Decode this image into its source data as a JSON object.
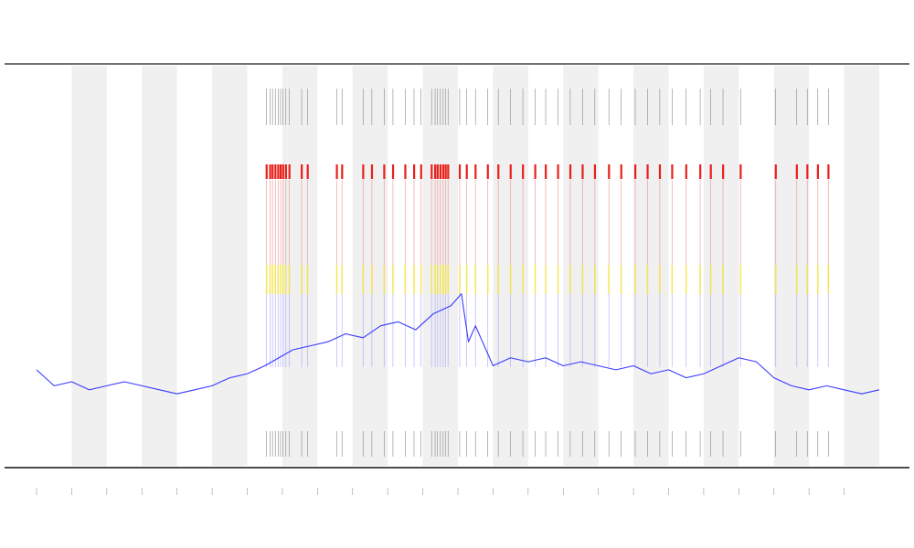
{
  "chart_data": {
    "type": "line",
    "title": "",
    "xlabel": "",
    "ylabel": "",
    "legend": "",
    "grid": false,
    "x_range": [
      0,
      24
    ],
    "y_range": [
      0,
      1
    ],
    "shaded_bands": [
      [
        1,
        2
      ],
      [
        3,
        4
      ],
      [
        5,
        6
      ],
      [
        7,
        8
      ],
      [
        9,
        10
      ],
      [
        11,
        12
      ],
      [
        13,
        14
      ],
      [
        15,
        16
      ],
      [
        17,
        18
      ],
      [
        19,
        20
      ],
      [
        21,
        22
      ],
      [
        23,
        24
      ]
    ],
    "series": [
      {
        "color": "#3a3aff",
        "x": [
          0,
          0.5,
          1,
          1.5,
          2,
          2.5,
          3,
          3.5,
          4,
          4.5,
          5,
          5.5,
          6,
          6.5,
          6.9,
          7.3,
          7.8,
          8.3,
          8.8,
          9.3,
          9.8,
          10.3,
          10.8,
          11.3,
          11.8,
          12.1,
          12.3,
          12.5,
          13,
          13.5,
          14,
          14.5,
          15,
          15.5,
          16,
          16.5,
          17,
          17.5,
          18,
          18.5,
          19,
          19.5,
          20,
          20.5,
          21,
          21.5,
          22,
          22.5,
          23,
          23.5,
          24
        ],
        "y": [
          0.24,
          0.2,
          0.21,
          0.19,
          0.2,
          0.21,
          0.2,
          0.19,
          0.18,
          0.19,
          0.2,
          0.22,
          0.23,
          0.25,
          0.27,
          0.29,
          0.3,
          0.31,
          0.33,
          0.32,
          0.35,
          0.36,
          0.34,
          0.38,
          0.4,
          0.43,
          0.31,
          0.35,
          0.25,
          0.27,
          0.26,
          0.27,
          0.25,
          0.26,
          0.25,
          0.24,
          0.25,
          0.23,
          0.24,
          0.22,
          0.23,
          0.25,
          0.27,
          0.26,
          0.22,
          0.2,
          0.19,
          0.2,
          0.19,
          0.18,
          0.19
        ]
      }
    ],
    "event_x": [
      6.55,
      6.65,
      6.72,
      6.8,
      6.88,
      6.95,
      7.02,
      7.1,
      7.2,
      7.55,
      7.72,
      8.55,
      8.7,
      9.3,
      9.55,
      9.9,
      10.15,
      10.5,
      10.75,
      10.95,
      11.25,
      11.35,
      11.42,
      11.5,
      11.58,
      11.65,
      11.72,
      12.05,
      12.25,
      12.5,
      12.85,
      13.15,
      13.5,
      13.85,
      14.2,
      14.5,
      14.85,
      15.2,
      15.55,
      15.9,
      16.3,
      16.65,
      17.05,
      17.4,
      17.75,
      18.1,
      18.5,
      18.9,
      19.2,
      19.55,
      20.05,
      21.05,
      21.65,
      21.95,
      22.25,
      22.55
    ]
  }
}
